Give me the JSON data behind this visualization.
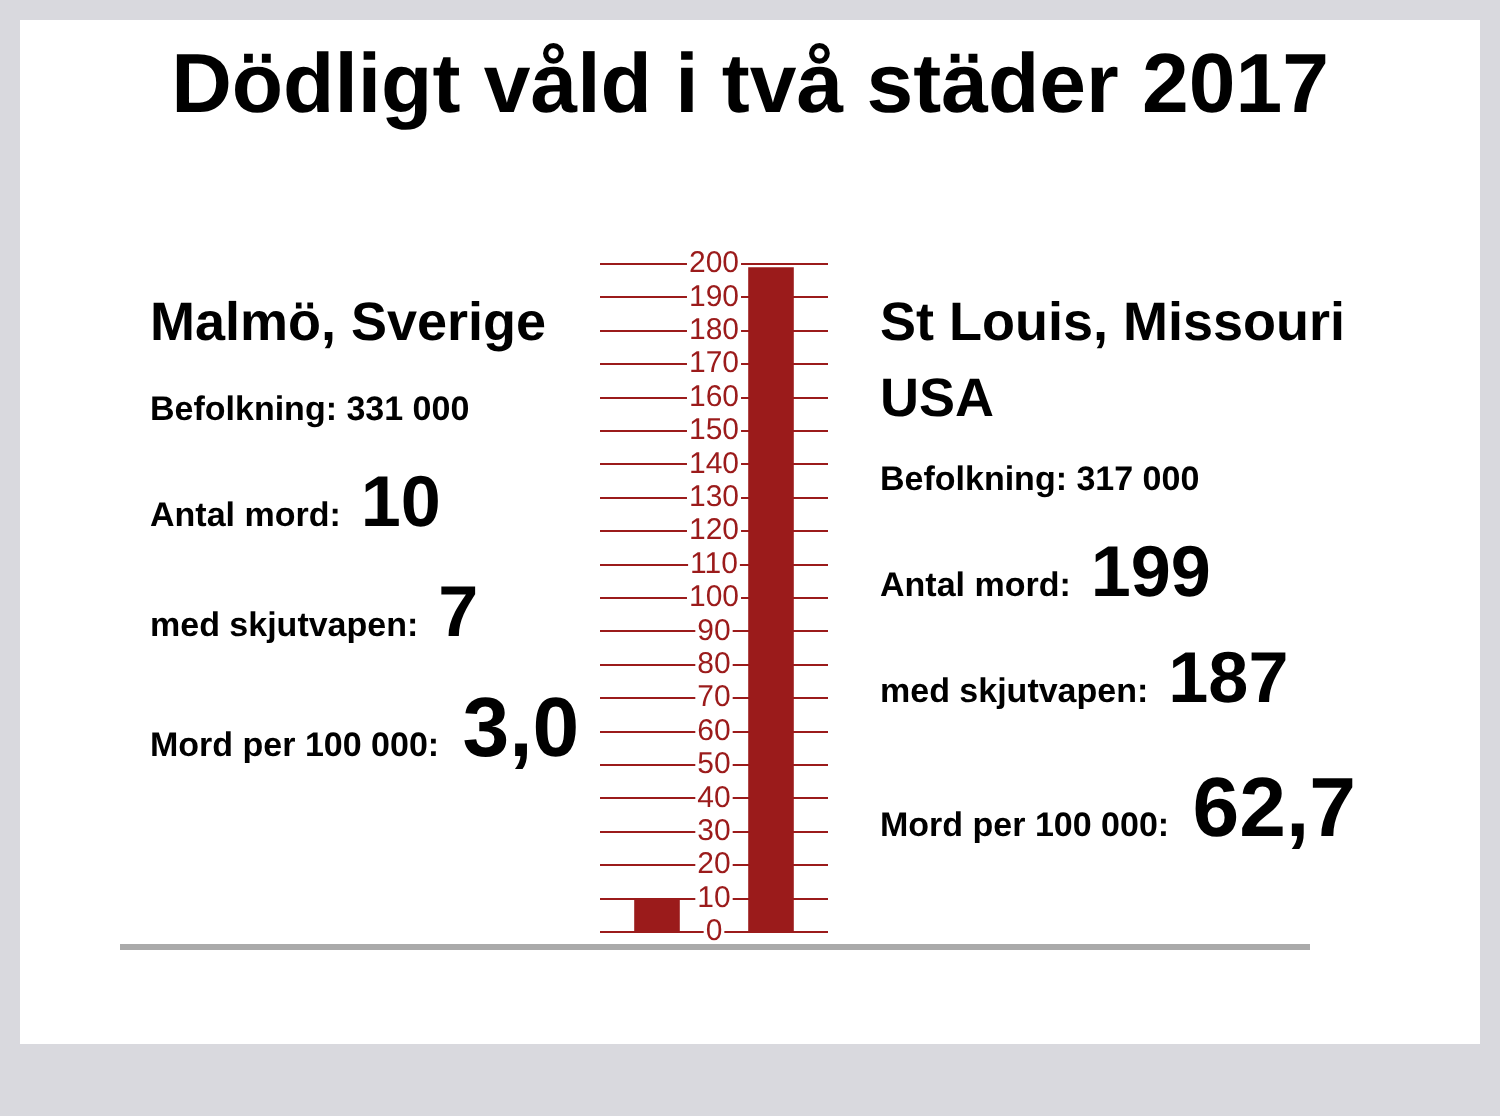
{
  "chart_data": {
    "type": "bar",
    "title": "Dödligt våld i två städer 2017",
    "categories": [
      null,
      null
    ],
    "values": [
      10,
      199
    ],
    "color": "#9b1b1b",
    "ylim": [
      0,
      200
    ],
    "yticks": [
      0,
      10,
      20,
      30,
      40,
      50,
      60,
      70,
      80,
      90,
      100,
      110,
      120,
      130,
      140,
      150,
      160,
      170,
      180,
      190,
      200
    ],
    "grid": "y",
    "annotations": [
      "Malmö, Sverige",
      "Befolkning: 331 000",
      "Antal mord: 10",
      "med skjutvapen: 7",
      "Mord per 100 000: 3,0",
      "St Louis, Missouri USA",
      "Befolkning: 317 000",
      "Antal mord: 199",
      "med skjutvapen: 187",
      "Mord per 100 000: 62,7"
    ]
  }
}
